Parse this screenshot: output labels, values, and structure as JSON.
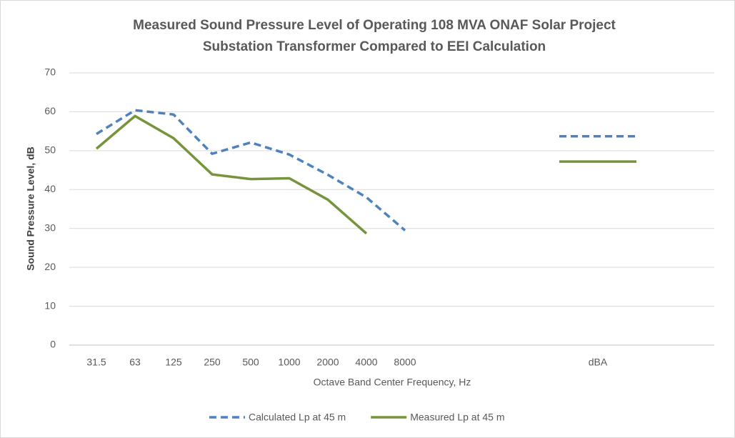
{
  "chart_data": {
    "type": "line",
    "title": [
      "Measured Sound Pressure Level of Operating 108 MVA ONAF Solar Project",
      "Substation Transformer Compared to EEI Calculation"
    ],
    "x_label": "Octave Band Center Frequency, Hz",
    "y_label": "Sound Pressure Level, dB",
    "categories": [
      "31.5",
      "63",
      "125",
      "250",
      "500",
      "1000",
      "2000",
      "4000",
      "8000",
      null,
      null,
      null,
      null,
      "dBA",
      null,
      null
    ],
    "series": [
      {
        "name": "Calculated Lp at 45 m",
        "color": "#4f81bd",
        "dashed": true,
        "values": [
          54.3,
          60.4,
          59.3,
          49.2,
          52.1,
          49.0,
          43.8,
          38.0,
          29.5,
          null,
          null,
          null,
          53.7,
          53.7,
          53.7,
          null
        ]
      },
      {
        "name": "Measured Lp at 45 m",
        "color": "#77933c",
        "dashed": false,
        "values": [
          50.5,
          58.9,
          53.2,
          43.9,
          42.7,
          42.9,
          37.4,
          28.7,
          null,
          null,
          null,
          null,
          47.2,
          47.2,
          47.2,
          null
        ]
      }
    ],
    "ylim": [
      0,
      70
    ],
    "yticks": [
      0,
      10,
      20,
      30,
      40,
      50,
      60,
      70
    ],
    "grid": true,
    "legend": "bottom"
  }
}
